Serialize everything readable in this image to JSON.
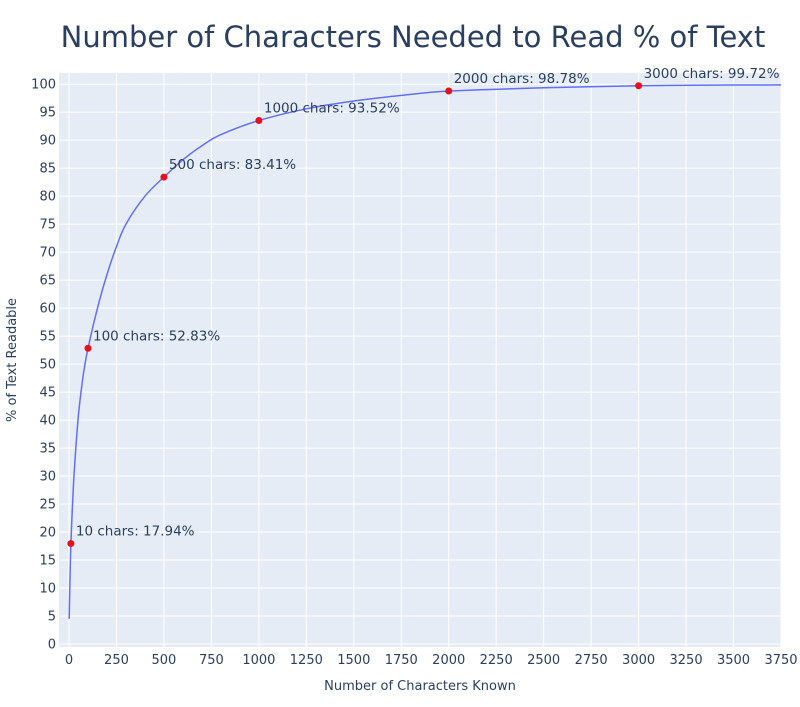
{
  "chart_data": {
    "type": "line",
    "title": "Number of Characters Needed to Read % of Text",
    "xlabel": "Number of Characters Known",
    "ylabel": "% of Text Readable",
    "xlim": [
      0,
      3750
    ],
    "ylim": [
      0,
      102
    ],
    "x_ticks": [
      0,
      250,
      500,
      750,
      1000,
      1250,
      1500,
      1750,
      2000,
      2250,
      2500,
      2750,
      3000,
      3250,
      3500,
      3750
    ],
    "y_ticks": [
      0,
      5,
      10,
      15,
      20,
      25,
      30,
      35,
      40,
      45,
      50,
      55,
      60,
      65,
      70,
      75,
      80,
      85,
      90,
      95,
      100
    ],
    "grid": true,
    "line_color": "#636efa",
    "marker_color": "#e8101a",
    "plot_bg": "#e5ecf6",
    "series": [
      {
        "x": [
          1,
          3,
          5,
          10,
          20,
          30,
          50,
          75,
          100,
          150,
          200,
          250,
          300,
          400,
          500,
          600,
          700,
          800,
          1000,
          1250,
          1500,
          1750,
          2000,
          2500,
          3000,
          3500,
          3750
        ],
        "y": [
          4.5,
          8,
          11,
          17.94,
          26,
          32,
          41,
          48,
          52.83,
          60,
          66,
          71,
          75,
          80,
          83.41,
          86.5,
          89,
          91,
          93.52,
          95.6,
          97,
          98,
          98.78,
          99.35,
          99.72,
          99.85,
          99.88
        ]
      }
    ],
    "highlights": [
      {
        "x": 10,
        "y": 17.94,
        "label": "10 chars: 17.94%"
      },
      {
        "x": 100,
        "y": 52.83,
        "label": "100 chars: 52.83%"
      },
      {
        "x": 500,
        "y": 83.41,
        "label": "500 chars: 83.41%"
      },
      {
        "x": 1000,
        "y": 93.52,
        "label": "1000 chars: 93.52%"
      },
      {
        "x": 2000,
        "y": 98.78,
        "label": "2000 chars: 98.78%"
      },
      {
        "x": 3000,
        "y": 99.72,
        "label": "3000 chars: 99.72%"
      }
    ]
  }
}
